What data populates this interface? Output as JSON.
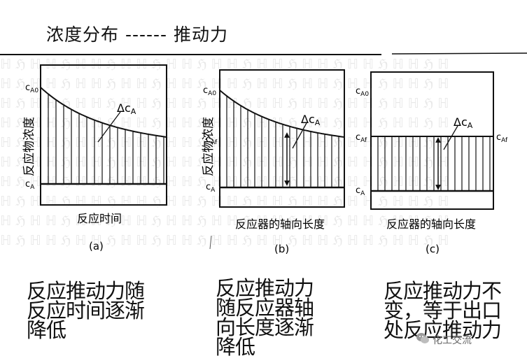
{
  "heading": "浓度分布 ------ 推动力",
  "panels": [
    {
      "id": "a",
      "y_axis_label": "反应物浓度",
      "x_axis_label": "反应时间",
      "panel_label": "(a)",
      "conc_initial_label": "c",
      "conc_initial_sub": "A0",
      "conc_equil_label": "c",
      "conc_equil_sub": "A",
      "driving_force_label": "Δc",
      "driving_force_sub": "A",
      "caption": [
        "反应推动力随",
        "反应时间逐渐",
        "降低"
      ]
    },
    {
      "id": "b",
      "y_axis_label": "反应物浓度",
      "x_axis_label": "反应器的轴向长度",
      "panel_label": "(b)",
      "conc_initial_label": "c",
      "conc_initial_sub": "A0",
      "conc_outlet_label": "c",
      "conc_outlet_sub": "Af",
      "conc_equil_label": "c",
      "conc_equil_sub": "A",
      "driving_force_label": "Δc",
      "driving_force_sub": "A",
      "caption": [
        "反应推动力",
        "随反应器轴",
        "向长度逐渐",
        "降低"
      ]
    },
    {
      "id": "c",
      "x_axis_label": "反应器的轴向长度",
      "panel_label": "(c)",
      "conc_initial_label": "c",
      "conc_initial_sub": "A0",
      "conc_outlet_label": "c",
      "conc_outlet_sub": "Af",
      "conc_outlet_right_label": "c",
      "conc_outlet_right_sub": "Af",
      "conc_equil_label": "c",
      "conc_equil_sub": "A",
      "driving_force_label": "Δc",
      "driving_force_sub": "A",
      "caption": [
        "反应推动力不",
        "变，等于出口",
        "处反应推动力"
      ]
    }
  ],
  "watermark": "化工交流",
  "watermark_icon": "wechat-icon"
}
